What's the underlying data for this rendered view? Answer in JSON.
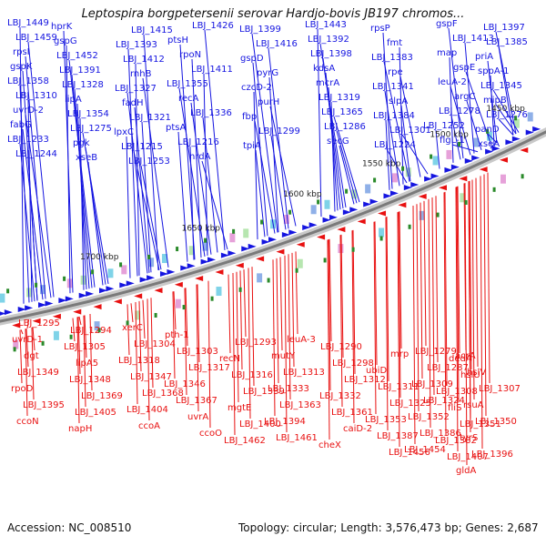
{
  "title": "Leptospira borgpetersenii serovar Hardjo-bovis JB197 chromos...",
  "accession_text": "Accession: NC_008510",
  "topology_text": "Topology: circular; Length: 3,576,473 bp; Genes: 2,687",
  "colors": {
    "upper_gene": "#1515e0",
    "lower_gene": "#e81010",
    "backbone": "#8a8a8a",
    "marker": "#2a8a2a"
  },
  "position_labels": [
    "1450 kbp",
    "1500 kbp",
    "1550 kbp",
    "1600 kbp",
    "1650 kbp",
    "1700 kbp"
  ],
  "upper_genes": [
    "LBJ_1449",
    "hprK",
    "LBJ_1415",
    "LBJ_1426",
    "LBJ_1399",
    "LBJ_1443",
    "rpsP",
    "gspF",
    "LBJ_1397",
    "LBJ_1459",
    "gspG",
    "LBJ_1393",
    "ptsH",
    "LBJ_1416",
    "LBJ_1392",
    "fmt",
    "LBJ_1413",
    "LBJ_1385",
    "rpsI",
    "LBJ_1452",
    "LBJ_1412",
    "rpoN",
    "gspD",
    "LBJ_1398",
    "LBJ_1383",
    "map",
    "priA",
    "gspK",
    "LBJ_1391",
    "rnhB",
    "LBJ_1411",
    "pyrG",
    "kdsA",
    "rpe",
    "gspE",
    "sppA-1",
    "LBJ_1358",
    "LBJ_1328",
    "LBJ_1327",
    "LBJ_1355",
    "czcD-2",
    "mcrA",
    "LBJ_1341",
    "leuA-2",
    "LBJ_1345",
    "LBJ_1310",
    "lipA",
    "fadH",
    "recA",
    "purH",
    "LBJ_1319",
    "slpA",
    "argC",
    "mipB",
    "uvrD-2",
    "LBJ_1354",
    "LBJ_1321",
    "LBJ_1336",
    "fbp",
    "LBJ_1365",
    "LBJ_1384",
    "LBJ_1278",
    "LBJ_1276",
    "fabG",
    "LBJ_1275",
    "lpxC",
    "ptsA",
    "LBJ_1299",
    "LBJ_1286",
    "LBJ_1301",
    "LBJ_1252",
    "panD",
    "LBJ_1233",
    "pgk",
    "LBJ_1215",
    "LBJ_1216",
    "tpiA",
    "secG",
    "LBJ_1224",
    "flgL-1",
    "xseA",
    "LBJ_1244",
    "xseB",
    "LBJ_1253",
    "nrdA"
  ],
  "lower_genes": [
    "acrA",
    "dedA",
    "LBJ_1279",
    "mrp",
    "LBJ_1290",
    "leuA-3",
    "LBJ_1293",
    "pth-1",
    "xerC",
    "LBJ_1294",
    "LBJ_1295",
    "hslV",
    "hslU",
    "LBJ_1287",
    "ubiD",
    "LBJ_1298",
    "mutY",
    "recN",
    "LBJ_1303",
    "LBJ_1304",
    "LBJ_1305",
    "uvrD-1",
    "LBJ_1307",
    "LBJ_1308",
    "LBJ_1309",
    "LBJ_1311",
    "LBJ_1312",
    "LBJ_1313",
    "LBJ_1316",
    "LBJ_1317",
    "LBJ_1318",
    "lipA5",
    "dgt",
    "rsuA",
    "fliS",
    "LBJ_1324",
    "LBJ_1325",
    "LBJ_1332",
    "LBJ_1333",
    "LBJ_1339",
    "LBJ_1346",
    "LBJ_1347",
    "LBJ_1348",
    "LBJ_1349",
    "LBJ_1350",
    "LBJ_1351",
    "LBJ_1352",
    "LBJ_1353",
    "LBJ_1361",
    "LBJ_1363",
    "mgtE",
    "LBJ_1367",
    "LBJ_1368",
    "LBJ_1369",
    "rpoD",
    "tyrS",
    "LBJ_1382",
    "LBJ_1386",
    "LBJ_1387",
    "caiD-2",
    "LBJ_1394",
    "LBJ_1400",
    "uvrA",
    "LBJ_1404",
    "LBJ_1405",
    "LBJ_1395",
    "LBJ_1396",
    "LBJ_1407",
    "LBJ_1454",
    "LBJ_1456",
    "cheX",
    "LBJ_1461",
    "LBJ_1462",
    "ccoO",
    "ccoA",
    "napH",
    "ccoN",
    "gldA"
  ]
}
